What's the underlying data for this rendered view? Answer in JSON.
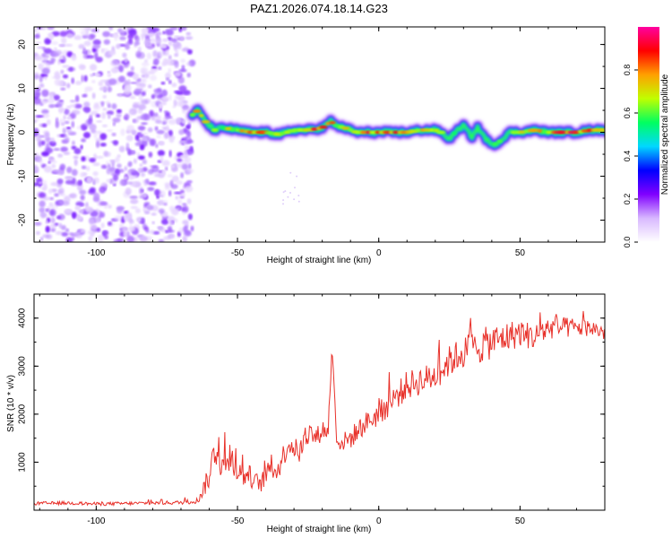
{
  "title": "PAZ1.2026.074.18.14.G23",
  "chart_data": [
    {
      "type": "heatmap",
      "title": "PAZ1.2026.074.18.14.G23",
      "xlabel": "Height of straight line (km)",
      "ylabel": "Frequency (Hz)",
      "xlim": [
        -122,
        80
      ],
      "ylim": [
        -25,
        24
      ],
      "xticks": [
        -100,
        -50,
        0,
        50
      ],
      "yticks": [
        -20,
        -10,
        0,
        10,
        20
      ],
      "xtick_labels": [
        "-100",
        "-50",
        "0",
        "50"
      ],
      "ytick_labels": [
        "-20",
        "-10",
        "0",
        "10",
        "20"
      ],
      "noise_region": {
        "x_from": -122,
        "x_to": -66,
        "freq_from": -25,
        "freq_to": 24
      },
      "ridge": {
        "heights": [
          -66,
          -64,
          -62,
          -60,
          -58,
          -55,
          -50,
          -45,
          -40,
          -35,
          -30,
          -25,
          -20,
          -17,
          -15,
          -12,
          -8,
          -5,
          0,
          5,
          10,
          15,
          20,
          22,
          25,
          27,
          30,
          33,
          35,
          38,
          40,
          43,
          46,
          50,
          55,
          60,
          65,
          70,
          75,
          80
        ],
        "frequencies": [
          4,
          5,
          3,
          1.5,
          0.5,
          1,
          0.5,
          0,
          0,
          -0.5,
          0.5,
          0.5,
          1,
          2.5,
          1.5,
          1,
          0,
          0,
          0,
          0,
          0,
          0.5,
          0.5,
          0,
          -1.5,
          0,
          1.5,
          -1,
          1,
          -1.5,
          -3,
          -2,
          0,
          0,
          0.5,
          0,
          0,
          0,
          0.5,
          0.5
        ],
        "amplitudes": [
          0.7,
          0.9,
          0.75,
          0.6,
          0.6,
          0.65,
          0.7,
          0.75,
          0.8,
          0.7,
          0.75,
          0.8,
          0.85,
          0.8,
          0.75,
          0.7,
          0.8,
          0.85,
          0.85,
          0.8,
          0.85,
          0.8,
          0.7,
          0.6,
          0.55,
          0.5,
          0.5,
          0.45,
          0.5,
          0.45,
          0.5,
          0.55,
          0.6,
          0.65,
          0.7,
          0.75,
          0.85,
          0.85,
          0.8,
          0.7
        ]
      },
      "colorbar": {
        "label": "Normalized spectral amplitude",
        "range": [
          0,
          1
        ],
        "ticks": [
          0.0,
          0.2,
          0.4,
          0.6,
          0.8
        ],
        "tick_labels": [
          "0.0",
          "0.2",
          "0.4",
          "0.6",
          "0.8"
        ],
        "colors": [
          "#ffffff",
          "#d8b8ff",
          "#8000ff",
          "#0000ff",
          "#00d8ff",
          "#00ff60",
          "#c0ff00",
          "#ffa000",
          "#ff0000",
          "#ff00a0"
        ]
      }
    },
    {
      "type": "line",
      "xlabel": "Height of straight line (km)",
      "ylabel": "SNR (10 * v/v)",
      "xlim": [
        -122,
        80
      ],
      "ylim": [
        0,
        4500
      ],
      "xticks": [
        -100,
        -50,
        0,
        50
      ],
      "yticks": [
        1000,
        2000,
        3000,
        4000
      ],
      "xtick_labels": [
        "-100",
        "-50",
        "0",
        "50"
      ],
      "ytick_labels": [
        "1000",
        "2000",
        "3000",
        "4000"
      ],
      "color": "#e8312a",
      "series": [
        {
          "name": "SNR",
          "x": [
            -122,
            -110,
            -100,
            -90,
            -80,
            -70,
            -64,
            -62,
            -60,
            -58,
            -56,
            -54,
            -52,
            -50,
            -48,
            -46,
            -44,
            -42,
            -40,
            -38,
            -36,
            -34,
            -32,
            -30,
            -28,
            -26,
            -24,
            -22,
            -20,
            -18,
            -16.5,
            -15,
            -13,
            -10,
            -5,
            0,
            5,
            10,
            15,
            20,
            25,
            30,
            35,
            40,
            45,
            50,
            55,
            60,
            65,
            70,
            75,
            80
          ],
          "y": [
            140,
            150,
            130,
            140,
            150,
            160,
            200,
            450,
            700,
            1300,
            1000,
            900,
            1100,
            800,
            700,
            750,
            600,
            550,
            700,
            900,
            800,
            1100,
            1400,
            1300,
            1200,
            1500,
            1600,
            1500,
            1700,
            1600,
            3400,
            1500,
            1400,
            1500,
            1800,
            2000,
            2300,
            2600,
            2700,
            2800,
            3100,
            3300,
            3400,
            3500,
            3600,
            3700,
            3600,
            3800,
            3800,
            3800,
            3800,
            3700
          ],
          "noise_amplitude": [
            70,
            70,
            70,
            70,
            70,
            80,
            120,
            350,
            500,
            700,
            600,
            550,
            550,
            500,
            450,
            450,
            400,
            400,
            400,
            450,
            450,
            500,
            500,
            450,
            450,
            450,
            450,
            450,
            400,
            400,
            200,
            400,
            400,
            450,
            450,
            500,
            550,
            600,
            600,
            600,
            650,
            700,
            750,
            700,
            650,
            600,
            550,
            500,
            450,
            400,
            350,
            350
          ]
        }
      ]
    }
  ]
}
